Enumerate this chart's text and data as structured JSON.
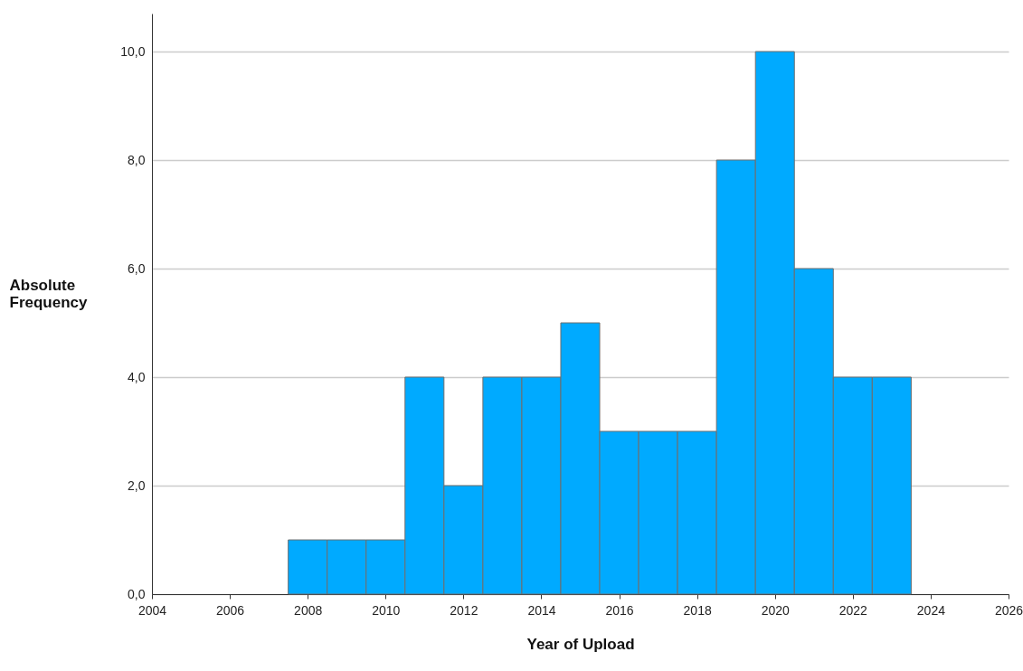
{
  "chart_data": {
    "type": "histogram",
    "xlabel": "Year of Upload",
    "ylabel": "Absolute Frequency",
    "bins": [
      2007.5,
      2008.5,
      2009.5,
      2010.5,
      2011.5,
      2012.5,
      2013.5,
      2014.5,
      2015.5,
      2016.5,
      2017.5,
      2018.5,
      2019.5,
      2020.5,
      2021.5,
      2022.5,
      2023.5
    ],
    "values": [
      1,
      1,
      1,
      4,
      2,
      4,
      4,
      5,
      3,
      3,
      3,
      8,
      10,
      6,
      4,
      4
    ],
    "color": "#00aaff",
    "xlim": [
      2004,
      2026
    ],
    "xticks": [
      2004,
      2006,
      2008,
      2010,
      2012,
      2014,
      2016,
      2018,
      2020,
      2022,
      2024,
      2026
    ],
    "ylim": [
      0,
      10.7
    ],
    "yticks": [
      {
        "value": 0,
        "label": "0,0"
      },
      {
        "value": 2,
        "label": "2,0"
      },
      {
        "value": 4,
        "label": "4,0"
      },
      {
        "value": 6,
        "label": "6,0"
      },
      {
        "value": 8,
        "label": "8,0"
      },
      {
        "value": 10,
        "label": "10,0"
      }
    ],
    "grid": "y"
  }
}
